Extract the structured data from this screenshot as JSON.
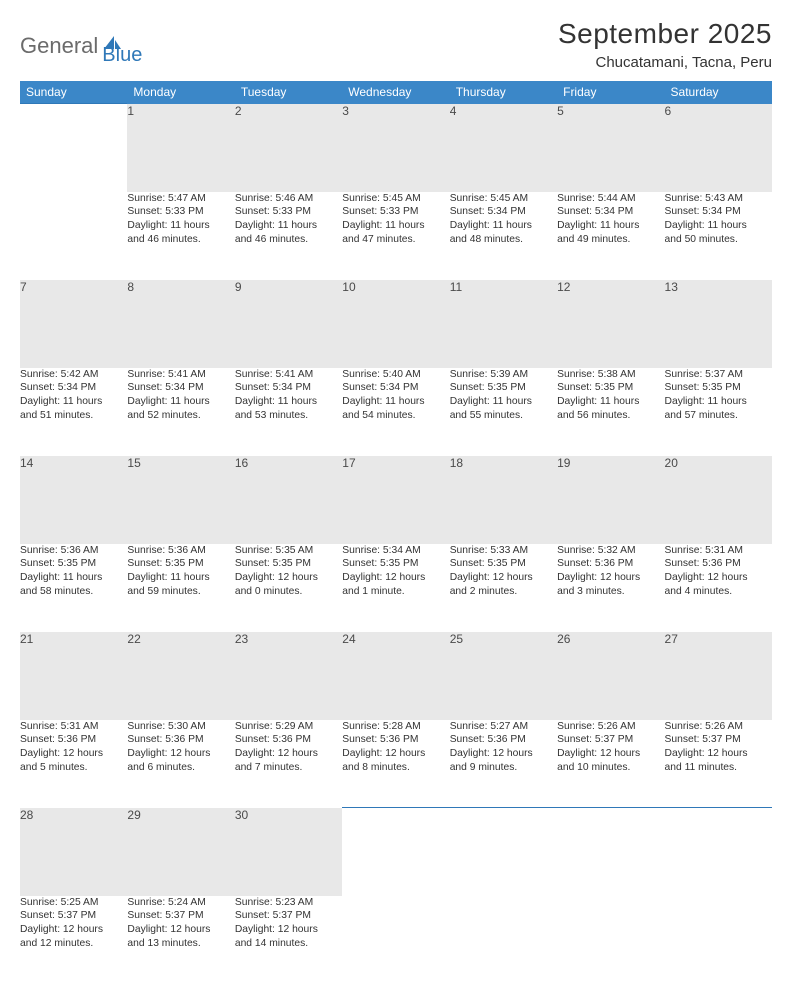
{
  "logo": {
    "word1": "General",
    "word2": "Blue"
  },
  "title": "September 2025",
  "location": "Chucatamani, Tacna, Peru",
  "colors": {
    "header_bg": "#3b87c8",
    "header_text": "#ffffff",
    "rule": "#2f78b8",
    "daynum_bg": "#e8e8e8",
    "text": "#333333",
    "logo_gray": "#6b6b6b",
    "logo_blue": "#2f78b8",
    "page_bg": "#ffffff"
  },
  "typography": {
    "month_title_pt": 28,
    "location_pt": 15,
    "dayheader_pt": 12,
    "cell_pt": 10.3
  },
  "day_headers": [
    "Sunday",
    "Monday",
    "Tuesday",
    "Wednesday",
    "Thursday",
    "Friday",
    "Saturday"
  ],
  "weeks": [
    {
      "nums": [
        "",
        "1",
        "2",
        "3",
        "4",
        "5",
        "6"
      ],
      "cells": [
        null,
        {
          "sunrise": "Sunrise: 5:47 AM",
          "sunset": "Sunset: 5:33 PM",
          "d1": "Daylight: 11 hours",
          "d2": "and 46 minutes."
        },
        {
          "sunrise": "Sunrise: 5:46 AM",
          "sunset": "Sunset: 5:33 PM",
          "d1": "Daylight: 11 hours",
          "d2": "and 46 minutes."
        },
        {
          "sunrise": "Sunrise: 5:45 AM",
          "sunset": "Sunset: 5:33 PM",
          "d1": "Daylight: 11 hours",
          "d2": "and 47 minutes."
        },
        {
          "sunrise": "Sunrise: 5:45 AM",
          "sunset": "Sunset: 5:34 PM",
          "d1": "Daylight: 11 hours",
          "d2": "and 48 minutes."
        },
        {
          "sunrise": "Sunrise: 5:44 AM",
          "sunset": "Sunset: 5:34 PM",
          "d1": "Daylight: 11 hours",
          "d2": "and 49 minutes."
        },
        {
          "sunrise": "Sunrise: 5:43 AM",
          "sunset": "Sunset: 5:34 PM",
          "d1": "Daylight: 11 hours",
          "d2": "and 50 minutes."
        }
      ]
    },
    {
      "nums": [
        "7",
        "8",
        "9",
        "10",
        "11",
        "12",
        "13"
      ],
      "cells": [
        {
          "sunrise": "Sunrise: 5:42 AM",
          "sunset": "Sunset: 5:34 PM",
          "d1": "Daylight: 11 hours",
          "d2": "and 51 minutes."
        },
        {
          "sunrise": "Sunrise: 5:41 AM",
          "sunset": "Sunset: 5:34 PM",
          "d1": "Daylight: 11 hours",
          "d2": "and 52 minutes."
        },
        {
          "sunrise": "Sunrise: 5:41 AM",
          "sunset": "Sunset: 5:34 PM",
          "d1": "Daylight: 11 hours",
          "d2": "and 53 minutes."
        },
        {
          "sunrise": "Sunrise: 5:40 AM",
          "sunset": "Sunset: 5:34 PM",
          "d1": "Daylight: 11 hours",
          "d2": "and 54 minutes."
        },
        {
          "sunrise": "Sunrise: 5:39 AM",
          "sunset": "Sunset: 5:35 PM",
          "d1": "Daylight: 11 hours",
          "d2": "and 55 minutes."
        },
        {
          "sunrise": "Sunrise: 5:38 AM",
          "sunset": "Sunset: 5:35 PM",
          "d1": "Daylight: 11 hours",
          "d2": "and 56 minutes."
        },
        {
          "sunrise": "Sunrise: 5:37 AM",
          "sunset": "Sunset: 5:35 PM",
          "d1": "Daylight: 11 hours",
          "d2": "and 57 minutes."
        }
      ]
    },
    {
      "nums": [
        "14",
        "15",
        "16",
        "17",
        "18",
        "19",
        "20"
      ],
      "cells": [
        {
          "sunrise": "Sunrise: 5:36 AM",
          "sunset": "Sunset: 5:35 PM",
          "d1": "Daylight: 11 hours",
          "d2": "and 58 minutes."
        },
        {
          "sunrise": "Sunrise: 5:36 AM",
          "sunset": "Sunset: 5:35 PM",
          "d1": "Daylight: 11 hours",
          "d2": "and 59 minutes."
        },
        {
          "sunrise": "Sunrise: 5:35 AM",
          "sunset": "Sunset: 5:35 PM",
          "d1": "Daylight: 12 hours",
          "d2": "and 0 minutes."
        },
        {
          "sunrise": "Sunrise: 5:34 AM",
          "sunset": "Sunset: 5:35 PM",
          "d1": "Daylight: 12 hours",
          "d2": "and 1 minute."
        },
        {
          "sunrise": "Sunrise: 5:33 AM",
          "sunset": "Sunset: 5:35 PM",
          "d1": "Daylight: 12 hours",
          "d2": "and 2 minutes."
        },
        {
          "sunrise": "Sunrise: 5:32 AM",
          "sunset": "Sunset: 5:36 PM",
          "d1": "Daylight: 12 hours",
          "d2": "and 3 minutes."
        },
        {
          "sunrise": "Sunrise: 5:31 AM",
          "sunset": "Sunset: 5:36 PM",
          "d1": "Daylight: 12 hours",
          "d2": "and 4 minutes."
        }
      ]
    },
    {
      "nums": [
        "21",
        "22",
        "23",
        "24",
        "25",
        "26",
        "27"
      ],
      "cells": [
        {
          "sunrise": "Sunrise: 5:31 AM",
          "sunset": "Sunset: 5:36 PM",
          "d1": "Daylight: 12 hours",
          "d2": "and 5 minutes."
        },
        {
          "sunrise": "Sunrise: 5:30 AM",
          "sunset": "Sunset: 5:36 PM",
          "d1": "Daylight: 12 hours",
          "d2": "and 6 minutes."
        },
        {
          "sunrise": "Sunrise: 5:29 AM",
          "sunset": "Sunset: 5:36 PM",
          "d1": "Daylight: 12 hours",
          "d2": "and 7 minutes."
        },
        {
          "sunrise": "Sunrise: 5:28 AM",
          "sunset": "Sunset: 5:36 PM",
          "d1": "Daylight: 12 hours",
          "d2": "and 8 minutes."
        },
        {
          "sunrise": "Sunrise: 5:27 AM",
          "sunset": "Sunset: 5:36 PM",
          "d1": "Daylight: 12 hours",
          "d2": "and 9 minutes."
        },
        {
          "sunrise": "Sunrise: 5:26 AM",
          "sunset": "Sunset: 5:37 PM",
          "d1": "Daylight: 12 hours",
          "d2": "and 10 minutes."
        },
        {
          "sunrise": "Sunrise: 5:26 AM",
          "sunset": "Sunset: 5:37 PM",
          "d1": "Daylight: 12 hours",
          "d2": "and 11 minutes."
        }
      ]
    },
    {
      "nums": [
        "28",
        "29",
        "30",
        "",
        "",
        "",
        ""
      ],
      "cells": [
        {
          "sunrise": "Sunrise: 5:25 AM",
          "sunset": "Sunset: 5:37 PM",
          "d1": "Daylight: 12 hours",
          "d2": "and 12 minutes."
        },
        {
          "sunrise": "Sunrise: 5:24 AM",
          "sunset": "Sunset: 5:37 PM",
          "d1": "Daylight: 12 hours",
          "d2": "and 13 minutes."
        },
        {
          "sunrise": "Sunrise: 5:23 AM",
          "sunset": "Sunset: 5:37 PM",
          "d1": "Daylight: 12 hours",
          "d2": "and 14 minutes."
        },
        null,
        null,
        null,
        null
      ]
    }
  ]
}
